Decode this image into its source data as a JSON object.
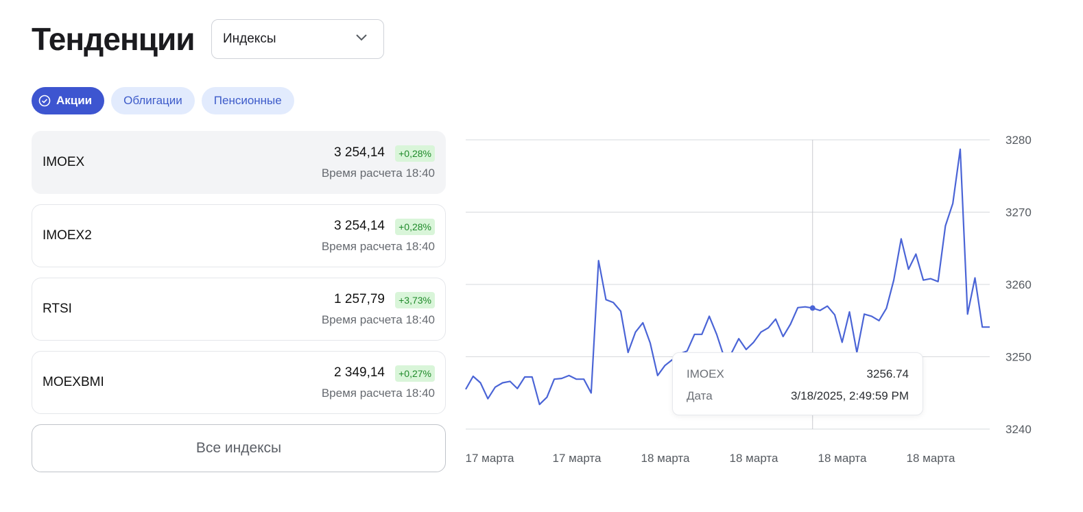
{
  "header": {
    "title": "Тенденции"
  },
  "select": {
    "value": "Индексы",
    "icon": "chevron-down-icon"
  },
  "chips": [
    {
      "label": "Акции",
      "active": true,
      "icon": "check-circle-icon"
    },
    {
      "label": "Облигации",
      "active": false
    },
    {
      "label": "Пенсионные",
      "active": false
    }
  ],
  "cards": [
    {
      "name": "IMOEX",
      "value": "3 254,14",
      "change": "+0,28%",
      "time": "Время расчета 18:40"
    },
    {
      "name": "IMOEX2",
      "value": "3 254,14",
      "change": "+0,28%",
      "time": "Время расчета 18:40"
    },
    {
      "name": "RTSI",
      "value": "1 257,79",
      "change": "+3,73%",
      "time": "Время расчета 18:40"
    },
    {
      "name": "MOEXBMI",
      "value": "2 349,14",
      "change": "+0,27%",
      "time": "Время расчета 18:40"
    }
  ],
  "all_button": "Все индексы",
  "tooltip": {
    "series_label": "IMOEX",
    "series_value": "3256.74",
    "date_label": "Дата",
    "date_value": "3/18/2025, 2:49:59 PM"
  },
  "colors": {
    "accent": "#3d55d0",
    "line": "#4a64d6",
    "badge_bg": "#d9f5d9",
    "badge_text": "#1f8a2a"
  },
  "chart_data": {
    "type": "line",
    "title": "",
    "xlabel": "",
    "ylabel": "",
    "ylim": [
      3240,
      3280
    ],
    "yticks": [
      3280,
      3270,
      3260,
      3250,
      3240
    ],
    "x_tick_labels": [
      "17 марта",
      "17 марта",
      "18 марта",
      "18 марта",
      "18 марта",
      "18 марта"
    ],
    "grid": true,
    "legend": "none",
    "series": [
      {
        "values": [
          3245.5,
          3247.3,
          3246.4,
          3244.2,
          3245.8,
          3246.4,
          3246.6,
          3245.6,
          3247.2,
          3247.2,
          3243.4,
          3244.4,
          3246.9,
          3247.0,
          3247.4,
          3246.9,
          3246.9,
          3245.0,
          3263.3,
          3257.9,
          3257.5,
          3256.3,
          3250.6,
          3253.4,
          3254.7,
          3251.9,
          3247.4,
          3248.8,
          3249.6,
          3250.4,
          3250.8,
          3253.1,
          3253.1,
          3255.6,
          3253.1,
          3250.0,
          3250.5,
          3252.5,
          3251.0,
          3252.0,
          3253.4,
          3254.0,
          3255.2,
          3252.8,
          3254.5,
          3256.8,
          3256.9,
          3256.74,
          3256.4,
          3257.0,
          3255.8,
          3252.0,
          3256.2,
          3250.6,
          3255.9,
          3255.6,
          3255.0,
          3256.7,
          3260.6,
          3266.3,
          3262.1,
          3264.2,
          3260.6,
          3260.8,
          3260.4,
          3268.1,
          3271.2,
          3278.7,
          3255.9,
          3260.9,
          3254.1,
          3254.1
        ]
      }
    ],
    "highlight_index": 47
  }
}
